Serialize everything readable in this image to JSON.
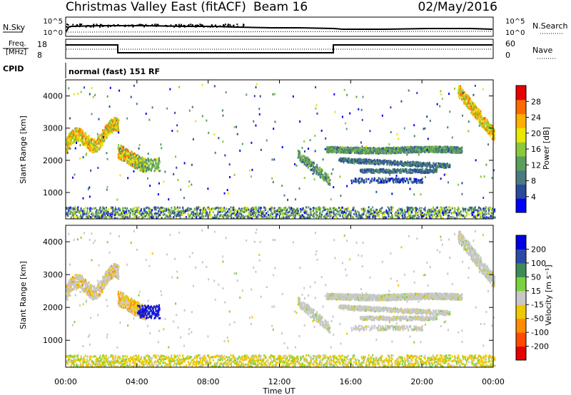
{
  "header": {
    "station": "Christmas Valley East (fitACF)",
    "beam": "Beam 16",
    "date": "02/May/2016"
  },
  "status_panel": {
    "nsky_label": "N.Sky",
    "nsky_ticks": [
      "10^5",
      "10^0"
    ],
    "nsearch_label": "N.Search",
    "nsearch_ticks": [
      "10^5",
      "10^0"
    ],
    "freq_label_1": "Freq.",
    "freq_label_2": "[MHz]",
    "freq_ticks": [
      "18",
      "8"
    ],
    "nave_label": "Nave",
    "nave_ticks": [
      "60",
      "0"
    ],
    "cpid_label": "CPID",
    "cpid_value": "normal (fast) 151 RF"
  },
  "chart_data": [
    {
      "type": "heatmap",
      "name": "power",
      "ylabel": "Slant Range [km]",
      "yticks": [
        "4000",
        "3000",
        "2000",
        "1000"
      ],
      "ylim": [
        180,
        4500
      ],
      "colorbar_label": "Power [dB]",
      "colorbar_ticks": [
        "28",
        "24",
        "20",
        "16",
        "12",
        "8",
        "4"
      ],
      "colorbar_range": [
        0,
        32
      ],
      "colormap": [
        "#0000ff",
        "#2a4a9c",
        "#4a7a80",
        "#5aa05a",
        "#8cc83c",
        "#e8e800",
        "#ffb000",
        "#ff6a00",
        "#e60000"
      ]
    },
    {
      "type": "heatmap",
      "name": "velocity",
      "ylabel": "Slant Range [km]",
      "yticks": [
        "4000",
        "3000",
        "2000",
        "1000"
      ],
      "ylim": [
        180,
        4500
      ],
      "colorbar_label": "Velocity [m s⁻¹]",
      "colorbar_ticks": [
        "200",
        "100",
        "50",
        "15",
        "-15",
        "-50",
        "-100",
        "-200"
      ],
      "colorbar_colors": [
        "#0000e0",
        "#2a4aa8",
        "#3c8c5a",
        "#7cd23c",
        "#c8c8c8",
        "#f0c800",
        "#ff8c00",
        "#ff4a00",
        "#e60000"
      ],
      "xlabel": "Time UT",
      "xticks": [
        "00:00",
        "04:00",
        "08:00",
        "12:00",
        "16:00",
        "20:00",
        "00:00"
      ],
      "xlim_hours": [
        0,
        24
      ]
    }
  ]
}
